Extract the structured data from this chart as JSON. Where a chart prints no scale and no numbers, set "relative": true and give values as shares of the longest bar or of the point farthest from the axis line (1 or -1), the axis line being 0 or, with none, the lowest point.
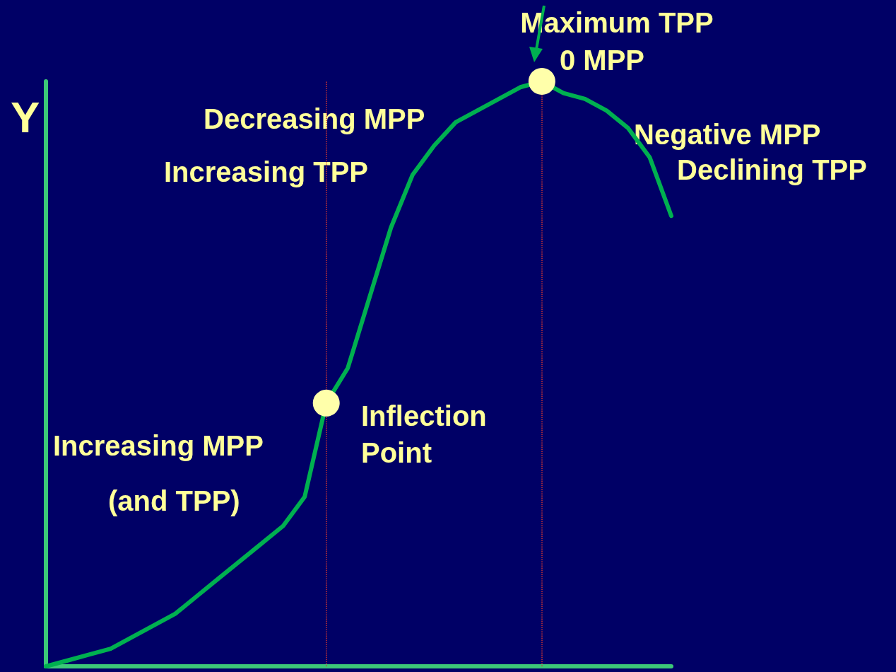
{
  "chart_data": {
    "type": "line",
    "relative": true,
    "ylabel": "Y",
    "categories": [
      null,
      null,
      null,
      null,
      null,
      null,
      null,
      null,
      null,
      null,
      null,
      null,
      null,
      null,
      null,
      null,
      null,
      null,
      null,
      null,
      null,
      null,
      null,
      null,
      null,
      null,
      null,
      null,
      null,
      null
    ],
    "series": [
      {
        "color": "#00b050",
        "values": [
          0,
          0.01,
          0.02,
          0.03,
          0.05,
          0.07,
          0.09,
          0.12,
          0.15,
          0.18,
          0.21,
          0.24,
          0.29,
          0.45,
          0.51,
          0.63,
          0.75,
          0.84,
          0.89,
          0.93,
          0.95,
          0.97,
          0.99,
          1.0,
          0.98,
          0.97,
          0.95,
          0.92,
          0.87,
          0.77
        ]
      }
    ],
    "annotations": [
      "Maximum TPP",
      "0 MPP",
      "Decreasing MPP",
      "Increasing TPP",
      "Negative MPP",
      "Declining TPP",
      "Inflection Point",
      "Increasing MPP",
      "(and TPP)"
    ],
    "grid": false,
    "marker": "none",
    "line_style": "solid"
  }
}
